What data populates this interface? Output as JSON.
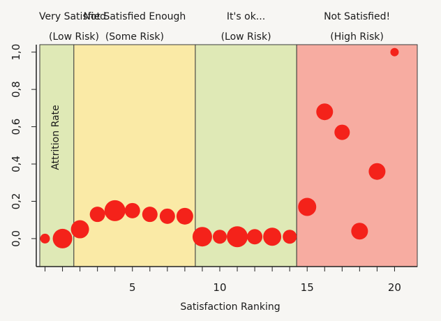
{
  "chart_data": {
    "type": "scatter",
    "title": "",
    "xlabel": "Satisfaction Ranking",
    "ylabel": "Attrition Rate",
    "xlim": [
      -0.5,
      21.3
    ],
    "ylim": [
      -0.15,
      1.04
    ],
    "x_ticks": [
      5,
      10,
      15,
      20
    ],
    "y_ticks": [
      0.0,
      0.2,
      0.4,
      0.6,
      0.8,
      1.0
    ],
    "y_tick_labels": [
      "0,0",
      "0,2",
      "0,4",
      "0,6",
      "0,8",
      "1,0"
    ],
    "grid": false,
    "zones": [
      {
        "title": "Very Satisfied",
        "subtitle": "(Low Risk)",
        "x_range": [
          -0.3,
          1.65
        ],
        "color": "#dfe9b6"
      },
      {
        "title": "Not Satisfied Enough",
        "subtitle": "(Some Risk)",
        "x_range": [
          1.65,
          8.6
        ],
        "color": "#faeaa6"
      },
      {
        "title": "It's ok...",
        "subtitle": "(Low Risk)",
        "x_range": [
          8.6,
          14.4
        ],
        "color": "#dfe9b6"
      },
      {
        "title": "Not Satisfied!",
        "subtitle": "(High Risk)",
        "x_range": [
          14.4,
          21.3
        ],
        "color": "#f7aca1"
      }
    ],
    "points": [
      {
        "x": 0,
        "y": 0.0,
        "size": 7
      },
      {
        "x": 1,
        "y": 0.0,
        "size": 14
      },
      {
        "x": 2,
        "y": 0.05,
        "size": 13
      },
      {
        "x": 3,
        "y": 0.13,
        "size": 11
      },
      {
        "x": 4,
        "y": 0.15,
        "size": 15
      },
      {
        "x": 5,
        "y": 0.15,
        "size": 11
      },
      {
        "x": 6,
        "y": 0.13,
        "size": 11
      },
      {
        "x": 7,
        "y": 0.12,
        "size": 11
      },
      {
        "x": 8,
        "y": 0.12,
        "size": 12
      },
      {
        "x": 9,
        "y": 0.01,
        "size": 14
      },
      {
        "x": 10,
        "y": 0.01,
        "size": 10
      },
      {
        "x": 11,
        "y": 0.01,
        "size": 15
      },
      {
        "x": 12,
        "y": 0.01,
        "size": 11
      },
      {
        "x": 13,
        "y": 0.01,
        "size": 13
      },
      {
        "x": 14,
        "y": 0.01,
        "size": 10
      },
      {
        "x": 15,
        "y": 0.17,
        "size": 13
      },
      {
        "x": 16,
        "y": 0.68,
        "size": 12
      },
      {
        "x": 17,
        "y": 0.57,
        "size": 11
      },
      {
        "x": 18,
        "y": 0.04,
        "size": 12
      },
      {
        "x": 19,
        "y": 0.36,
        "size": 12
      },
      {
        "x": 20,
        "y": 1.0,
        "size": 6
      }
    ],
    "point_color": "#f4221a"
  }
}
